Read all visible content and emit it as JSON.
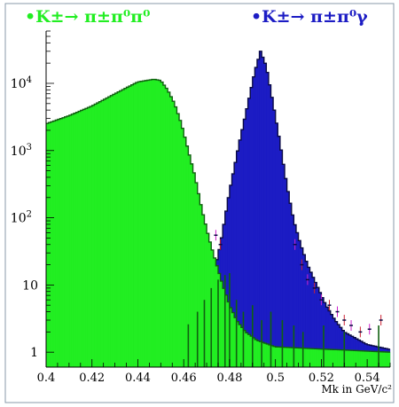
{
  "chart_data": {
    "type": "histogram",
    "xlabel": "Mk in GeV/c²",
    "ylabel": "",
    "y_scale": "log",
    "xlim": [
      0.4,
      0.55
    ],
    "ylim": [
      0.6,
      60000
    ],
    "x_ticks": [
      {
        "value": 0.4,
        "label": "0.4"
      },
      {
        "value": 0.42,
        "label": "0.42"
      },
      {
        "value": 0.44,
        "label": "0.44"
      },
      {
        "value": 0.46,
        "label": "0.46"
      },
      {
        "value": 0.48,
        "label": "0.48"
      },
      {
        "value": 0.5,
        "label": "0.5"
      },
      {
        "value": 0.52,
        "label": "0.52"
      },
      {
        "value": 0.54,
        "label": "0.54"
      }
    ],
    "y_ticks": [
      {
        "value": 1,
        "base": "1",
        "exp": ""
      },
      {
        "value": 10,
        "base": "10",
        "exp": ""
      },
      {
        "value": 100,
        "base": "10",
        "exp": "2"
      },
      {
        "value": 1000,
        "base": "10",
        "exp": "3"
      },
      {
        "value": 10000,
        "base": "10",
        "exp": "4"
      }
    ],
    "series": [
      {
        "name": "•K±→ π±π⁰π⁰",
        "color": "#22ee22",
        "shape": "plateau",
        "points": [
          [
            0.4,
            2500
          ],
          [
            0.41,
            3300
          ],
          [
            0.42,
            4600
          ],
          [
            0.43,
            7000
          ],
          [
            0.44,
            10500
          ],
          [
            0.447,
            11500
          ],
          [
            0.45,
            11000
          ],
          [
            0.453,
            8000
          ],
          [
            0.456,
            5000
          ],
          [
            0.459,
            2500
          ],
          [
            0.462,
            1000
          ],
          [
            0.465,
            400
          ],
          [
            0.468,
            130
          ],
          [
            0.471,
            50
          ],
          [
            0.474,
            22
          ],
          [
            0.477,
            10
          ],
          [
            0.48,
            5
          ],
          [
            0.483,
            3
          ],
          [
            0.487,
            2
          ],
          [
            0.492,
            1.5
          ],
          [
            0.5,
            1.2
          ],
          [
            0.55,
            1.0
          ]
        ]
      },
      {
        "name": "•K±→ π±π⁰γ",
        "color": "#1c1cc4",
        "shape": "peak",
        "points": [
          [
            0.472,
            10
          ],
          [
            0.476,
            40
          ],
          [
            0.48,
            250
          ],
          [
            0.484,
            1200
          ],
          [
            0.488,
            5000
          ],
          [
            0.491,
            15000
          ],
          [
            0.4935,
            30000
          ],
          [
            0.496,
            18000
          ],
          [
            0.499,
            5000
          ],
          [
            0.502,
            1300
          ],
          [
            0.505,
            300
          ],
          [
            0.508,
            90
          ],
          [
            0.511,
            40
          ],
          [
            0.514,
            20
          ],
          [
            0.518,
            10
          ],
          [
            0.522,
            5
          ],
          [
            0.526,
            3
          ],
          [
            0.53,
            2
          ],
          [
            0.54,
            1.3
          ],
          [
            0.55,
            1.1
          ]
        ]
      }
    ],
    "grid": false,
    "legend_position": "top"
  },
  "colors": {
    "green": "#22ee22",
    "dark_green": "#106010",
    "blue": "#1c1cc4",
    "dark_blue": "#0a0a44",
    "error_red": "#cc2233",
    "error_magenta": "#cc22cc",
    "frame": "#8899aa"
  }
}
